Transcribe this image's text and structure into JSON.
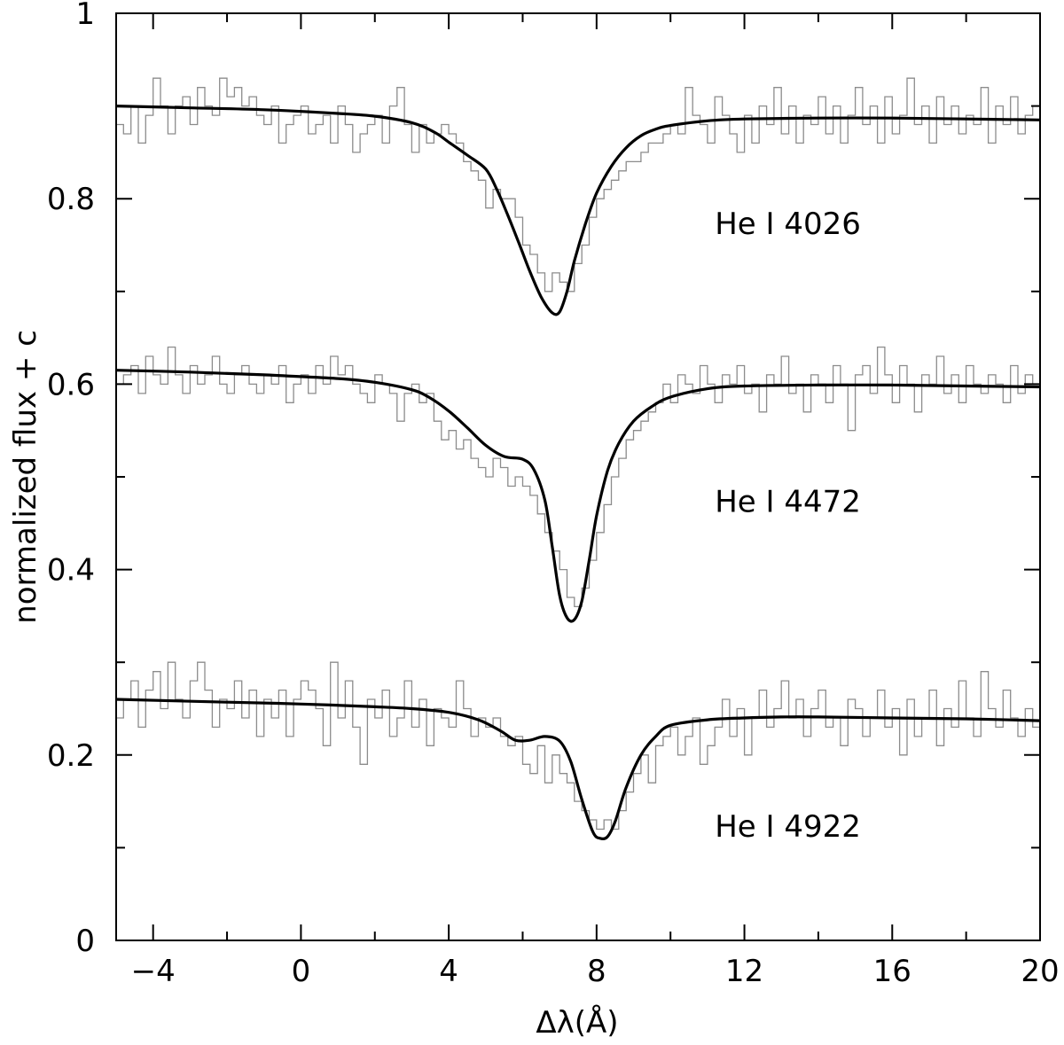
{
  "chart_data": {
    "type": "line",
    "xlabel": "Δλ(Å)",
    "ylabel": "normalized flux + c",
    "xlim": [
      -5,
      20
    ],
    "ylim": [
      0,
      1
    ],
    "x_major_ticks": [
      -4,
      0,
      4,
      8,
      12,
      16,
      20
    ],
    "x_tick_labels": [
      "−4",
      "0",
      "4",
      "8",
      "12",
      "16",
      "20"
    ],
    "x_minor_step": 2,
    "y_major_ticks": [
      0,
      0.2,
      0.4,
      0.6,
      0.8,
      1
    ],
    "y_tick_labels": [
      "0",
      "0.2",
      "0.4",
      "0.6",
      "0.8",
      "1"
    ],
    "y_minor_step": 0.1,
    "colors": {
      "model": "#000000",
      "observed": "#8c8c8c",
      "axes": "#000000"
    },
    "series": [
      {
        "name": "He I 4026",
        "label_x": 11.2,
        "label_y": 0.762,
        "observed": {
          "x": [
            -5,
            -4.8,
            -4.6,
            -4.4,
            -4.2,
            -4,
            -3.8,
            -3.6,
            -3.4,
            -3.2,
            -3,
            -2.8,
            -2.6,
            -2.4,
            -2.2,
            -2,
            -1.8,
            -1.6,
            -1.4,
            -1.2,
            -1,
            -0.8,
            -0.6,
            -0.4,
            -0.2,
            0,
            0.2,
            0.4,
            0.6,
            0.8,
            1,
            1.2,
            1.4,
            1.6,
            1.8,
            2,
            2.2,
            2.4,
            2.6,
            2.8,
            3,
            3.2,
            3.4,
            3.6,
            3.8,
            4,
            4.2,
            4.4,
            4.6,
            4.8,
            5,
            5.2,
            5.4,
            5.6,
            5.8,
            6,
            6.2,
            6.4,
            6.6,
            6.8,
            7,
            7.2,
            7.4,
            7.6,
            7.8,
            8,
            8.2,
            8.4,
            8.6,
            8.8,
            9,
            9.2,
            9.4,
            9.6,
            9.8,
            10,
            10.2,
            10.4,
            10.6,
            10.8,
            11,
            11.2,
            11.4,
            11.6,
            11.8,
            12,
            12.2,
            12.4,
            12.6,
            12.8,
            13,
            13.2,
            13.4,
            13.6,
            13.8,
            14,
            14.2,
            14.4,
            14.6,
            14.8,
            15,
            15.2,
            15.4,
            15.6,
            15.8,
            16,
            16.2,
            16.4,
            16.6,
            16.8,
            17,
            17.2,
            17.4,
            17.6,
            17.8,
            18,
            18.2,
            18.4,
            18.6,
            18.8,
            19,
            19.2,
            19.4,
            19.6,
            19.8
          ],
          "y": [
            0.88,
            0.87,
            0.9,
            0.86,
            0.89,
            0.93,
            0.9,
            0.87,
            0.9,
            0.91,
            0.88,
            0.92,
            0.9,
            0.89,
            0.93,
            0.91,
            0.92,
            0.9,
            0.91,
            0.89,
            0.88,
            0.9,
            0.86,
            0.88,
            0.89,
            0.9,
            0.87,
            0.88,
            0.89,
            0.86,
            0.9,
            0.88,
            0.85,
            0.87,
            0.88,
            0.89,
            0.86,
            0.9,
            0.92,
            0.88,
            0.85,
            0.88,
            0.86,
            0.87,
            0.88,
            0.87,
            0.86,
            0.84,
            0.83,
            0.82,
            0.79,
            0.81,
            0.8,
            0.8,
            0.78,
            0.75,
            0.74,
            0.72,
            0.7,
            0.72,
            0.71,
            0.7,
            0.73,
            0.75,
            0.78,
            0.8,
            0.81,
            0.82,
            0.83,
            0.84,
            0.84,
            0.85,
            0.86,
            0.86,
            0.87,
            0.88,
            0.87,
            0.92,
            0.89,
            0.88,
            0.86,
            0.91,
            0.89,
            0.87,
            0.85,
            0.89,
            0.86,
            0.9,
            0.88,
            0.92,
            0.87,
            0.9,
            0.86,
            0.89,
            0.88,
            0.91,
            0.87,
            0.9,
            0.86,
            0.89,
            0.92,
            0.88,
            0.9,
            0.86,
            0.91,
            0.87,
            0.89,
            0.93,
            0.88,
            0.9,
            0.86,
            0.91,
            0.88,
            0.9,
            0.87,
            0.89,
            0.88,
            0.92,
            0.86,
            0.9,
            0.88,
            0.91,
            0.87,
            0.89,
            0.9
          ]
        },
        "model": {
          "x": [
            -5,
            -3,
            -1,
            1,
            2,
            3,
            3.6,
            4,
            4.5,
            5,
            5.3,
            5.6,
            5.9,
            6.2,
            6.5,
            6.8,
            7,
            7.2,
            7.4,
            7.7,
            8,
            8.4,
            8.8,
            9.2,
            9.6,
            10,
            11,
            12,
            14,
            16,
            18,
            20
          ],
          "y": [
            0.9,
            0.898,
            0.896,
            0.892,
            0.889,
            0.882,
            0.872,
            0.861,
            0.847,
            0.832,
            0.81,
            0.782,
            0.752,
            0.721,
            0.694,
            0.677,
            0.678,
            0.7,
            0.733,
            0.773,
            0.806,
            0.835,
            0.855,
            0.868,
            0.875,
            0.879,
            0.884,
            0.886,
            0.887,
            0.887,
            0.886,
            0.885
          ]
        }
      },
      {
        "name": "He I 4472",
        "label_x": 11.2,
        "label_y": 0.462,
        "observed": {
          "x": [
            -5,
            -4.8,
            -4.6,
            -4.4,
            -4.2,
            -4,
            -3.8,
            -3.6,
            -3.4,
            -3.2,
            -3,
            -2.8,
            -2.6,
            -2.4,
            -2.2,
            -2,
            -1.8,
            -1.6,
            -1.4,
            -1.2,
            -1,
            -0.8,
            -0.6,
            -0.4,
            -0.2,
            0,
            0.2,
            0.4,
            0.6,
            0.8,
            1,
            1.2,
            1.4,
            1.6,
            1.8,
            2,
            2.2,
            2.4,
            2.6,
            2.8,
            3,
            3.2,
            3.4,
            3.6,
            3.8,
            4,
            4.2,
            4.4,
            4.6,
            4.8,
            5,
            5.2,
            5.4,
            5.6,
            5.8,
            6,
            6.2,
            6.4,
            6.6,
            6.8,
            7,
            7.2,
            7.4,
            7.6,
            7.8,
            8,
            8.2,
            8.4,
            8.6,
            8.8,
            9,
            9.2,
            9.4,
            9.6,
            9.8,
            10,
            10.2,
            10.4,
            10.6,
            10.8,
            11,
            11.2,
            11.4,
            11.6,
            11.8,
            12,
            12.2,
            12.4,
            12.6,
            12.8,
            13,
            13.2,
            13.4,
            13.6,
            13.8,
            14,
            14.2,
            14.4,
            14.6,
            14.8,
            15,
            15.2,
            15.4,
            15.6,
            15.8,
            16,
            16.2,
            16.4,
            16.6,
            16.8,
            17,
            17.2,
            17.4,
            17.6,
            17.8,
            18,
            18.2,
            18.4,
            18.6,
            18.8,
            19,
            19.2,
            19.4,
            19.6,
            19.8
          ],
          "y": [
            0.6,
            0.61,
            0.62,
            0.59,
            0.63,
            0.61,
            0.6,
            0.64,
            0.61,
            0.59,
            0.62,
            0.6,
            0.61,
            0.63,
            0.6,
            0.59,
            0.61,
            0.62,
            0.6,
            0.59,
            0.61,
            0.6,
            0.62,
            0.58,
            0.6,
            0.61,
            0.59,
            0.62,
            0.6,
            0.63,
            0.61,
            0.62,
            0.6,
            0.59,
            0.58,
            0.61,
            0.6,
            0.59,
            0.56,
            0.59,
            0.6,
            0.58,
            0.59,
            0.56,
            0.54,
            0.55,
            0.53,
            0.54,
            0.52,
            0.51,
            0.5,
            0.52,
            0.51,
            0.49,
            0.5,
            0.49,
            0.48,
            0.46,
            0.44,
            0.42,
            0.4,
            0.37,
            0.36,
            0.38,
            0.41,
            0.44,
            0.47,
            0.5,
            0.52,
            0.54,
            0.55,
            0.56,
            0.57,
            0.58,
            0.6,
            0.58,
            0.61,
            0.6,
            0.59,
            0.62,
            0.6,
            0.58,
            0.61,
            0.6,
            0.62,
            0.59,
            0.6,
            0.57,
            0.61,
            0.6,
            0.63,
            0.59,
            0.6,
            0.57,
            0.61,
            0.6,
            0.58,
            0.62,
            0.6,
            0.55,
            0.61,
            0.62,
            0.59,
            0.64,
            0.61,
            0.58,
            0.62,
            0.6,
            0.57,
            0.61,
            0.6,
            0.63,
            0.59,
            0.61,
            0.58,
            0.62,
            0.6,
            0.59,
            0.61,
            0.6,
            0.58,
            0.62,
            0.59,
            0.61,
            0.6
          ]
        },
        "model": {
          "x": [
            -5,
            -3,
            -1,
            1,
            2,
            3,
            3.5,
            4,
            4.5,
            5,
            5.5,
            6,
            6.3,
            6.6,
            6.8,
            7,
            7.2,
            7.4,
            7.6,
            7.8,
            8,
            8.3,
            8.6,
            9,
            9.5,
            10,
            11,
            12,
            14,
            16,
            18,
            20
          ],
          "y": [
            0.615,
            0.613,
            0.61,
            0.606,
            0.602,
            0.594,
            0.585,
            0.571,
            0.553,
            0.534,
            0.522,
            0.519,
            0.508,
            0.475,
            0.425,
            0.372,
            0.348,
            0.346,
            0.366,
            0.41,
            0.458,
            0.507,
            0.536,
            0.56,
            0.576,
            0.586,
            0.595,
            0.598,
            0.599,
            0.599,
            0.598,
            0.597
          ]
        }
      },
      {
        "name": "He I 4922",
        "label_x": 11.2,
        "label_y": 0.112,
        "observed": {
          "x": [
            -5,
            -4.8,
            -4.6,
            -4.4,
            -4.2,
            -4,
            -3.8,
            -3.6,
            -3.4,
            -3.2,
            -3,
            -2.8,
            -2.6,
            -2.4,
            -2.2,
            -2,
            -1.8,
            -1.6,
            -1.4,
            -1.2,
            -1,
            -0.8,
            -0.6,
            -0.4,
            -0.2,
            0,
            0.2,
            0.4,
            0.6,
            0.8,
            1,
            1.2,
            1.4,
            1.6,
            1.8,
            2,
            2.2,
            2.4,
            2.6,
            2.8,
            3,
            3.2,
            3.4,
            3.6,
            3.8,
            4,
            4.2,
            4.4,
            4.6,
            4.8,
            5,
            5.2,
            5.4,
            5.6,
            5.8,
            6,
            6.2,
            6.4,
            6.6,
            6.8,
            7,
            7.2,
            7.4,
            7.6,
            7.8,
            8,
            8.2,
            8.4,
            8.6,
            8.8,
            9,
            9.2,
            9.4,
            9.6,
            9.8,
            10,
            10.2,
            10.4,
            10.6,
            10.8,
            11,
            11.2,
            11.4,
            11.6,
            11.8,
            12,
            12.2,
            12.4,
            12.6,
            12.8,
            13,
            13.2,
            13.4,
            13.6,
            13.8,
            14,
            14.2,
            14.4,
            14.6,
            14.8,
            15,
            15.2,
            15.4,
            15.6,
            15.8,
            16,
            16.2,
            16.4,
            16.6,
            16.8,
            17,
            17.2,
            17.4,
            17.6,
            17.8,
            18,
            18.2,
            18.4,
            18.6,
            18.8,
            19,
            19.2,
            19.4,
            19.6,
            19.8
          ],
          "y": [
            0.24,
            0.26,
            0.28,
            0.23,
            0.27,
            0.29,
            0.25,
            0.3,
            0.26,
            0.24,
            0.28,
            0.3,
            0.27,
            0.23,
            0.26,
            0.25,
            0.28,
            0.24,
            0.27,
            0.22,
            0.26,
            0.24,
            0.27,
            0.22,
            0.26,
            0.28,
            0.27,
            0.25,
            0.21,
            0.3,
            0.24,
            0.28,
            0.23,
            0.19,
            0.26,
            0.24,
            0.27,
            0.22,
            0.24,
            0.28,
            0.23,
            0.26,
            0.21,
            0.25,
            0.24,
            0.23,
            0.28,
            0.25,
            0.22,
            0.24,
            0.23,
            0.24,
            0.22,
            0.21,
            0.22,
            0.19,
            0.18,
            0.21,
            0.17,
            0.2,
            0.18,
            0.17,
            0.15,
            0.14,
            0.13,
            0.12,
            0.13,
            0.12,
            0.14,
            0.16,
            0.18,
            0.2,
            0.17,
            0.21,
            0.22,
            0.23,
            0.2,
            0.22,
            0.24,
            0.19,
            0.21,
            0.23,
            0.26,
            0.22,
            0.25,
            0.2,
            0.24,
            0.27,
            0.23,
            0.25,
            0.28,
            0.24,
            0.26,
            0.22,
            0.25,
            0.27,
            0.23,
            0.24,
            0.21,
            0.26,
            0.25,
            0.22,
            0.24,
            0.27,
            0.23,
            0.25,
            0.2,
            0.26,
            0.22,
            0.24,
            0.27,
            0.21,
            0.25,
            0.23,
            0.28,
            0.24,
            0.22,
            0.29,
            0.25,
            0.23,
            0.27,
            0.24,
            0.22,
            0.25,
            0.23
          ]
        },
        "model": {
          "x": [
            -5,
            -2,
            0,
            2,
            3,
            4,
            4.8,
            5.4,
            5.8,
            6.2,
            6.6,
            7,
            7.3,
            7.6,
            7.9,
            8.1,
            8.3,
            8.5,
            8.8,
            9.2,
            9.6,
            10,
            11,
            12,
            13,
            14,
            16,
            18,
            20
          ],
          "y": [
            0.26,
            0.257,
            0.255,
            0.252,
            0.25,
            0.246,
            0.238,
            0.226,
            0.216,
            0.216,
            0.22,
            0.215,
            0.193,
            0.152,
            0.117,
            0.11,
            0.112,
            0.128,
            0.165,
            0.2,
            0.22,
            0.232,
            0.238,
            0.24,
            0.241,
            0.241,
            0.24,
            0.239,
            0.237
          ]
        }
      }
    ]
  }
}
